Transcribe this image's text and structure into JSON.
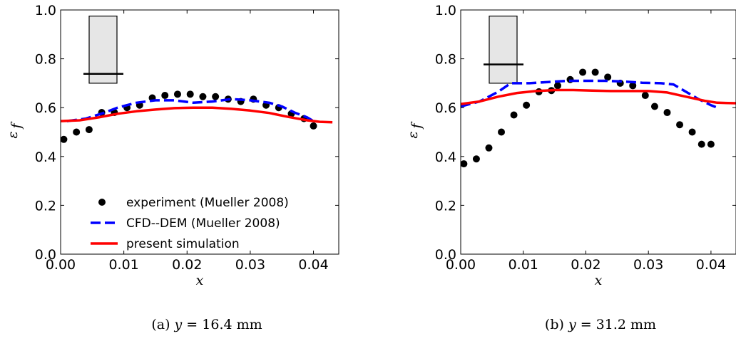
{
  "chart_data": [
    {
      "type": "line",
      "caption": {
        "prefix": "(a) ",
        "var": "y",
        "rest": " = 16.4 mm"
      },
      "xlabel": "x",
      "ylabel": "ε_f",
      "ylabel_main": "ε",
      "ylabel_sub": "f",
      "xlim": [
        0,
        0.044
      ],
      "ylim": [
        0,
        1.0
      ],
      "xticks": [
        "0.00",
        "0.01",
        "0.02",
        "0.03",
        "0.04"
      ],
      "xtick_values": [
        0,
        0.01,
        0.02,
        0.03,
        0.04
      ],
      "yticks": [
        "0.0",
        "0.2",
        "0.4",
        "0.6",
        "0.8",
        "1.0"
      ],
      "ytick_values": [
        0,
        0.2,
        0.4,
        0.6,
        0.8,
        1.0
      ],
      "legend": {
        "position": "lower-center",
        "entries": [
          {
            "label": "experiment (Mueller 2008)",
            "style": "dots",
            "color": "#000000"
          },
          {
            "label": "CFD--DEM (Mueller 2008)",
            "style": "dashed",
            "color": "#0000ff"
          },
          {
            "label": "present simulation",
            "style": "solid",
            "color": "#ff0000"
          }
        ]
      },
      "inset": {
        "y_low": 0.7,
        "y_high": 0.975,
        "marker_frac": 0.14
      },
      "series": [
        {
          "name": "experiment (Mueller 2008)",
          "style": "dots",
          "color": "#000000",
          "x": [
            0.0005,
            0.0025,
            0.0045,
            0.0065,
            0.0085,
            0.0105,
            0.0125,
            0.0145,
            0.0165,
            0.0185,
            0.0205,
            0.0225,
            0.0245,
            0.0265,
            0.0285,
            0.0305,
            0.0325,
            0.0345,
            0.0365,
            0.0385,
            0.04
          ],
          "y": [
            0.47,
            0.5,
            0.51,
            0.58,
            0.58,
            0.6,
            0.61,
            0.64,
            0.65,
            0.655,
            0.655,
            0.645,
            0.645,
            0.635,
            0.625,
            0.635,
            0.61,
            0.6,
            0.575,
            0.555,
            0.525
          ]
        },
        {
          "name": "CFD--DEM (Mueller 2008)",
          "style": "dashed",
          "color": "#0000ff",
          "x": [
            0.001,
            0.004,
            0.007,
            0.009,
            0.012,
            0.015,
            0.018,
            0.021,
            0.024,
            0.027,
            0.03,
            0.033,
            0.035,
            0.037,
            0.039,
            0.04
          ],
          "y": [
            0.545,
            0.555,
            0.58,
            0.6,
            0.62,
            0.63,
            0.63,
            0.62,
            0.625,
            0.635,
            0.63,
            0.62,
            0.605,
            0.58,
            0.56,
            0.545
          ]
        },
        {
          "name": "present simulation",
          "style": "solid",
          "color": "#ff0000",
          "x": [
            0.0,
            0.003,
            0.006,
            0.009,
            0.012,
            0.015,
            0.018,
            0.021,
            0.024,
            0.027,
            0.03,
            0.033,
            0.036,
            0.039,
            0.041,
            0.043
          ],
          "y": [
            0.545,
            0.548,
            0.56,
            0.575,
            0.585,
            0.592,
            0.598,
            0.6,
            0.6,
            0.595,
            0.588,
            0.578,
            0.562,
            0.548,
            0.542,
            0.54
          ]
        }
      ]
    },
    {
      "type": "line",
      "caption": {
        "prefix": "(b) ",
        "var": "y",
        "rest": " = 31.2 mm"
      },
      "xlabel": "x",
      "ylabel": "ε_f",
      "ylabel_main": "ε",
      "ylabel_sub": "f",
      "xlim": [
        0,
        0.044
      ],
      "ylim": [
        0,
        1.0
      ],
      "xticks": [
        "0.00",
        "0.01",
        "0.02",
        "0.03",
        "0.04"
      ],
      "xtick_values": [
        0,
        0.01,
        0.02,
        0.03,
        0.04
      ],
      "yticks": [
        "0.0",
        "0.2",
        "0.4",
        "0.6",
        "0.8",
        "1.0"
      ],
      "ytick_values": [
        0,
        0.2,
        0.4,
        0.6,
        0.8,
        1.0
      ],
      "inset": {
        "y_low": 0.7,
        "y_high": 0.975,
        "marker_frac": 0.28
      },
      "series": [
        {
          "name": "experiment (Mueller 2008)",
          "style": "dots",
          "color": "#000000",
          "x": [
            0.0005,
            0.0025,
            0.0045,
            0.0065,
            0.0085,
            0.0105,
            0.0125,
            0.0145,
            0.0155,
            0.0175,
            0.0195,
            0.0215,
            0.0235,
            0.0255,
            0.0275,
            0.0295,
            0.031,
            0.033,
            0.035,
            0.037,
            0.0385,
            0.04
          ],
          "y": [
            0.37,
            0.39,
            0.435,
            0.5,
            0.57,
            0.61,
            0.665,
            0.67,
            0.69,
            0.715,
            0.745,
            0.745,
            0.725,
            0.7,
            0.69,
            0.65,
            0.605,
            0.58,
            0.53,
            0.5,
            0.45,
            0.45
          ]
        },
        {
          "name": "CFD--DEM (Mueller 2008)",
          "style": "dashed",
          "color": "#0000ff",
          "x": [
            0.0,
            0.003,
            0.006,
            0.008,
            0.011,
            0.014,
            0.017,
            0.02,
            0.023,
            0.026,
            0.029,
            0.032,
            0.034,
            0.036,
            0.038,
            0.04,
            0.041
          ],
          "y": [
            0.605,
            0.625,
            0.665,
            0.7,
            0.7,
            0.705,
            0.71,
            0.71,
            0.71,
            0.707,
            0.702,
            0.7,
            0.695,
            0.665,
            0.635,
            0.61,
            0.6
          ]
        },
        {
          "name": "present simulation",
          "style": "solid",
          "color": "#ff0000",
          "x": [
            0.0,
            0.003,
            0.006,
            0.009,
            0.012,
            0.015,
            0.018,
            0.021,
            0.024,
            0.027,
            0.03,
            0.033,
            0.036,
            0.039,
            0.041,
            0.044
          ],
          "y": [
            0.615,
            0.625,
            0.645,
            0.66,
            0.668,
            0.672,
            0.672,
            0.67,
            0.668,
            0.668,
            0.668,
            0.662,
            0.645,
            0.628,
            0.62,
            0.618
          ]
        }
      ]
    }
  ]
}
